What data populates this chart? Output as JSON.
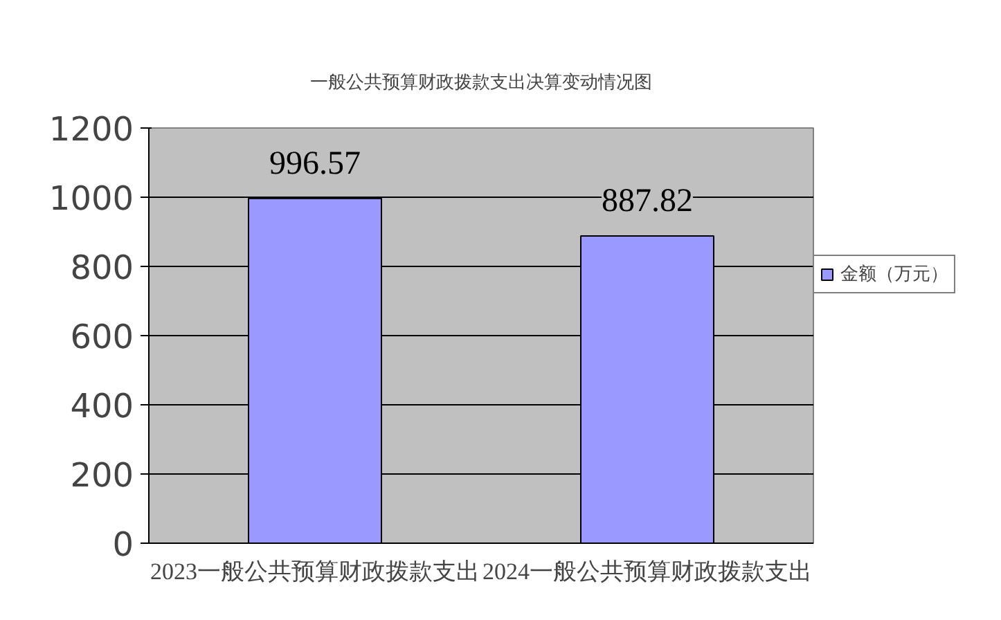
{
  "chart_data": {
    "type": "bar",
    "title": "一般公共预算财政拨款支出决算变动情况图",
    "categories": [
      "2023一般公共预算财政拨款支出",
      "2024一般公共预算财政拨款支出"
    ],
    "series": [
      {
        "name": "金额（万元）",
        "color": "#9999ff",
        "values": [
          996.57,
          887.82
        ]
      }
    ],
    "ylim": [
      0,
      1200
    ],
    "yticks": [
      0,
      200,
      400,
      600,
      800,
      1000,
      1200
    ],
    "grid": "y",
    "legend": "right",
    "data_labels": true
  }
}
